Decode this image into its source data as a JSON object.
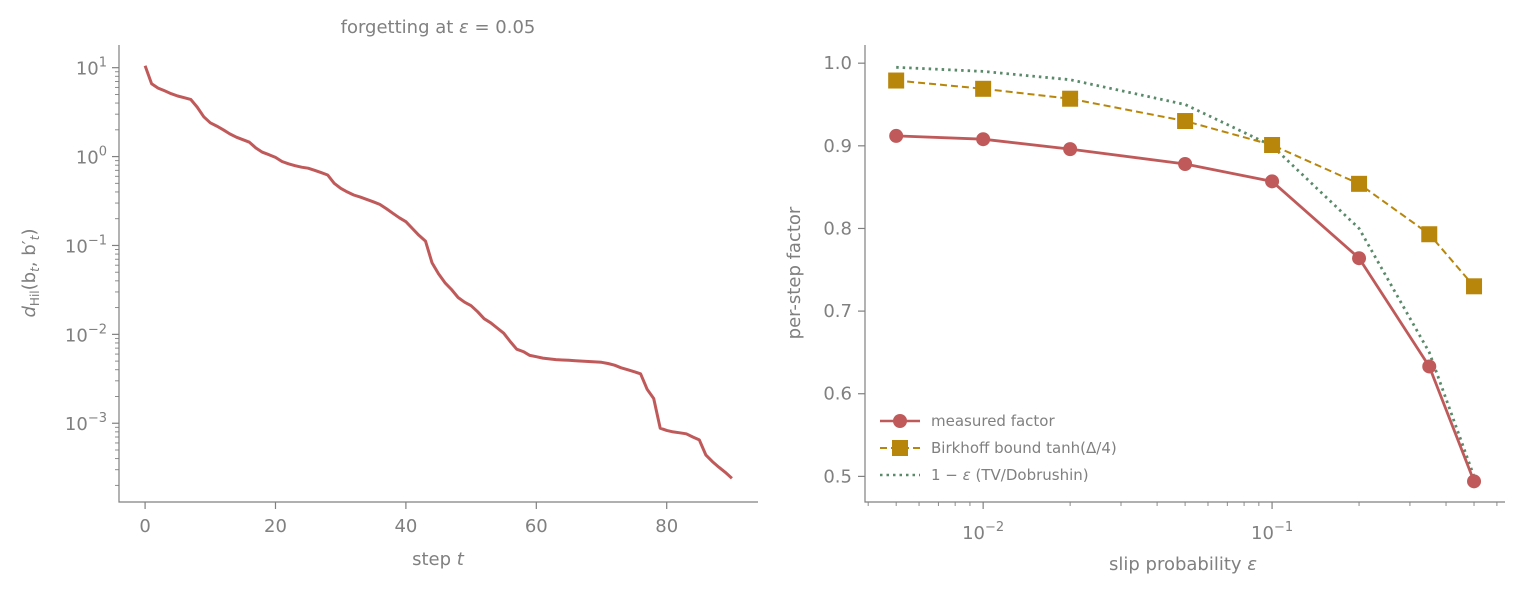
{
  "colors": {
    "axis": "#808080",
    "text": "#808080",
    "measured": "#c05a5a",
    "birkhoff": "#b8860b",
    "tv": "#5a8a6a"
  },
  "chart_data": [
    {
      "type": "line",
      "title": "forgetting at ε = 0.05",
      "title_parts": {
        "prefix": "forgetting at ",
        "symbol": "ε",
        "suffix": " = 0.05"
      },
      "xlabel": "step t",
      "xlabel_parts": {
        "prefix": "step ",
        "symbol": "t"
      },
      "ylabel": "d_Hil(b_t, b'_t)",
      "ylabel_parts": {
        "main": "d",
        "sub": "Hil",
        "args": "(b",
        "sub2": "t",
        "sep": ", b′",
        "sub3": "t",
        "close": ")"
      },
      "yscale": "log",
      "xlim": [
        -4,
        94
      ],
      "ylim": [
        0.00013,
        18
      ],
      "xticks": [
        0,
        20,
        40,
        60,
        80
      ],
      "yticks": [
        {
          "value": 10,
          "base": "10",
          "exp": "1"
        },
        {
          "value": 1,
          "base": "10",
          "exp": "0"
        },
        {
          "value": 0.1,
          "base": "10",
          "exp": "−1"
        },
        {
          "value": 0.01,
          "base": "10",
          "exp": "−2"
        },
        {
          "value": 0.001,
          "base": "10",
          "exp": "−3"
        }
      ],
      "series": [
        {
          "color": "#c05a5a",
          "x": [
            0,
            1,
            2,
            3,
            4,
            5,
            6,
            7,
            8,
            9,
            10,
            11,
            12,
            13,
            14,
            15,
            16,
            17,
            18,
            19,
            20,
            21,
            22,
            23,
            24,
            25,
            26,
            27,
            28,
            29,
            30,
            31,
            32,
            33,
            34,
            35,
            36,
            37,
            38,
            39,
            40,
            41,
            42,
            43,
            44,
            45,
            46,
            47,
            48,
            49,
            50,
            51,
            52,
            53,
            54,
            55,
            56,
            57,
            58,
            59,
            60,
            61,
            62,
            63,
            64,
            65,
            66,
            67,
            68,
            69,
            70,
            71,
            72,
            73,
            74,
            75,
            76,
            77,
            78,
            79,
            80,
            81,
            82,
            83,
            84,
            85,
            86,
            87,
            88,
            89,
            90
          ],
          "y": [
            10.5,
            6.6,
            5.9,
            5.5,
            5.1,
            4.8,
            4.6,
            4.4,
            3.6,
            2.8,
            2.4,
            2.2,
            2.0,
            1.8,
            1.65,
            1.55,
            1.45,
            1.25,
            1.12,
            1.05,
            0.98,
            0.88,
            0.83,
            0.79,
            0.76,
            0.74,
            0.7,
            0.66,
            0.62,
            0.5,
            0.44,
            0.4,
            0.37,
            0.35,
            0.33,
            0.31,
            0.29,
            0.26,
            0.23,
            0.205,
            0.185,
            0.155,
            0.13,
            0.112,
            0.064,
            0.048,
            0.038,
            0.032,
            0.026,
            0.023,
            0.021,
            0.018,
            0.015,
            0.0135,
            0.0118,
            0.0103,
            0.0083,
            0.0068,
            0.0064,
            0.0058,
            0.0056,
            0.0054,
            0.0053,
            0.0052,
            0.00515,
            0.0051,
            0.00505,
            0.005,
            0.00495,
            0.0049,
            0.00485,
            0.0047,
            0.0045,
            0.0042,
            0.004,
            0.0038,
            0.0036,
            0.0024,
            0.0019,
            0.00088,
            0.00083,
            0.0008,
            0.00078,
            0.00076,
            0.0007,
            0.00065,
            0.00044,
            0.00037,
            0.00032,
            0.00028,
            0.00024
          ]
        }
      ]
    },
    {
      "type": "line",
      "title": "",
      "xlabel": "slip probability ε",
      "xlabel_parts": {
        "prefix": "slip probability ",
        "symbol": "ε"
      },
      "ylabel": "per-step factor",
      "xscale": "log",
      "xlim": [
        0.0039,
        0.64
      ],
      "ylim": [
        0.469,
        1.022
      ],
      "xticks": [
        {
          "value": 0.01,
          "base": "10",
          "exp": "−2"
        },
        {
          "value": 0.1,
          "base": "10",
          "exp": "−1"
        }
      ],
      "yticks": [
        0.5,
        0.6,
        0.7,
        0.8,
        0.9,
        1.0
      ],
      "ytick_labels": [
        "0.5",
        "0.6",
        "0.7",
        "0.8",
        "0.9",
        "1.0"
      ],
      "x": [
        0.005,
        0.01,
        0.02,
        0.05,
        0.1,
        0.2,
        0.35,
        0.5
      ],
      "legend_position": "lower-left",
      "series": [
        {
          "name": "measured factor",
          "color": "#c05a5a",
          "marker": "circle",
          "linestyle": "solid",
          "values": [
            0.912,
            0.908,
            0.896,
            0.878,
            0.857,
            0.764,
            0.633,
            0.494
          ]
        },
        {
          "name": "Birkhoff bound tanh(Δ/4)",
          "color": "#b8860b",
          "marker": "square",
          "linestyle": "dashed",
          "values": [
            0.979,
            0.969,
            0.957,
            0.93,
            0.901,
            0.854,
            0.793,
            0.73
          ]
        },
        {
          "name": "1 − ε (TV/Dobrushin)",
          "name_parts": {
            "prefix": "1 − ",
            "symbol": "ε",
            "suffix": " (TV/Dobrushin)"
          },
          "color": "#5a8a6a",
          "marker": "none",
          "linestyle": "dotted",
          "values": [
            0.995,
            0.99,
            0.98,
            0.95,
            0.9,
            0.8,
            0.65,
            0.5
          ]
        }
      ]
    }
  ]
}
